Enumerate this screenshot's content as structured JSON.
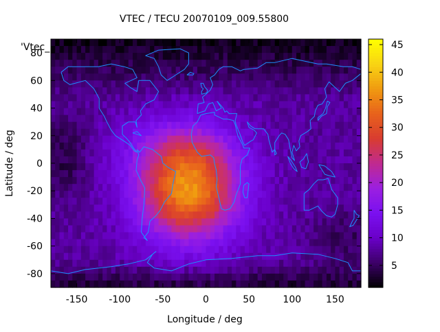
{
  "chart_data": {
    "type": "heatmap",
    "title": "VTEC / TECU 20070109_009.55800",
    "xlabel": "Longitude / deg",
    "ylabel": "Latitude / deg",
    "series_key": "'Vtec_",
    "xlim": [
      -180,
      180
    ],
    "ylim": [
      -90,
      90
    ],
    "x_ticks": [
      -150,
      -100,
      -50,
      0,
      50,
      100,
      150
    ],
    "y_ticks": [
      -80,
      -60,
      -40,
      -20,
      0,
      20,
      40,
      60,
      80
    ],
    "x_tick_labels": [
      "-150",
      "-100",
      "-50",
      "0",
      "50",
      "100",
      "150"
    ],
    "y_tick_labels": [
      "-80",
      "-60",
      "-40",
      "-20",
      "0",
      "20",
      "40",
      "60",
      "80"
    ],
    "colorbar": {
      "range": [
        1,
        46
      ],
      "ticks": [
        5,
        10,
        15,
        20,
        25,
        30,
        35,
        40,
        45
      ],
      "tick_labels": [
        "5",
        "10",
        "15",
        "20",
        "25",
        "30",
        "35",
        "40",
        "45"
      ],
      "colormap": [
        "#000000",
        "#3c0068",
        "#6a00c8",
        "#7a10f0",
        "#9b1fe0",
        "#c02a90",
        "#d83c30",
        "#e8621c",
        "#f09a10",
        "#f8d414",
        "#ffff00"
      ]
    },
    "grid_resolution_deg": [
      5,
      5
    ],
    "peak": {
      "lon": -20,
      "lat": -20,
      "value": 36
    },
    "background_value": 8,
    "coastline_color": "#1e90ff"
  }
}
